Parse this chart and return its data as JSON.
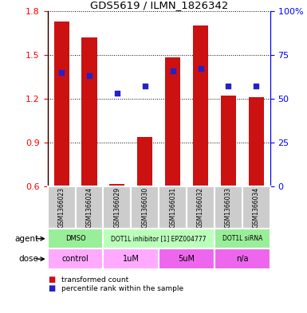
{
  "title": "GDS5619 / ILMN_1826342",
  "samples": [
    "GSM1366023",
    "GSM1366024",
    "GSM1366029",
    "GSM1366030",
    "GSM1366031",
    "GSM1366032",
    "GSM1366033",
    "GSM1366034"
  ],
  "bar_values": [
    1.73,
    1.62,
    0.615,
    0.935,
    1.485,
    1.7,
    1.22,
    1.21
  ],
  "dot_percentiles": [
    65,
    63,
    53,
    57,
    66,
    67,
    57,
    57
  ],
  "ylim": [
    0.6,
    1.8
  ],
  "yticks_left": [
    0.6,
    0.9,
    1.2,
    1.5,
    1.8
  ],
  "yticks_right": [
    0,
    25,
    50,
    75,
    100
  ],
  "bar_color": "#cc1111",
  "dot_color": "#2222cc",
  "agent_groups": [
    {
      "label": "DMSO",
      "span": [
        0,
        2
      ],
      "color": "#99ee99"
    },
    {
      "label": "DOT1L inhibitor [1] EPZ004777",
      "span": [
        2,
        6
      ],
      "color": "#bbffbb"
    },
    {
      "label": "DOT1L siRNA",
      "span": [
        6,
        8
      ],
      "color": "#99ee99"
    }
  ],
  "dose_groups": [
    {
      "label": "control",
      "span": [
        0,
        2
      ],
      "color": "#ffaaff"
    },
    {
      "label": "1uM",
      "span": [
        2,
        4
      ],
      "color": "#ffaaff"
    },
    {
      "label": "5uM",
      "span": [
        4,
        6
      ],
      "color": "#ee66ee"
    },
    {
      "label": "n/a",
      "span": [
        6,
        8
      ],
      "color": "#ee66ee"
    }
  ],
  "legend_bar_label": "transformed count",
  "legend_dot_label": "percentile rank within the sample",
  "xlabel_agent": "agent",
  "xlabel_dose": "dose",
  "sample_bg_color": "#cccccc",
  "sample_border_color": "#ffffff"
}
